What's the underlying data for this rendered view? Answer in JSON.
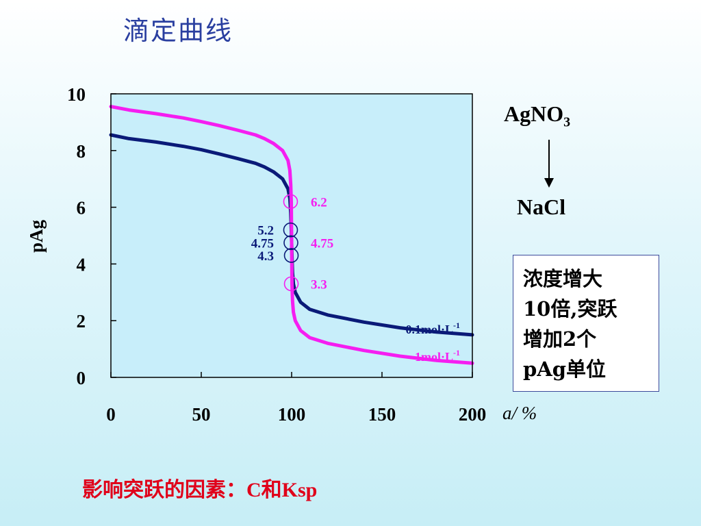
{
  "slide": {
    "title": "滴定曲线",
    "titrant": "AgNO",
    "titrant_subscript": "3",
    "analyte": "NaCl",
    "note_lines": [
      "浓度增大",
      "10倍,突跃",
      "增加2个",
      "pAg单位"
    ],
    "factors_prefix": "影响突跃的因素：",
    "factors_c": "C",
    "factors_mid": "和",
    "factors_ksp": "Ksp"
  },
  "colors": {
    "axis": "#000000",
    "dilute_series": "#0a1a78",
    "concentrated_series": "#f51ef0",
    "plot_background": "#c8eefa",
    "annotation_dilute": "#0a1a78",
    "annotation_concentrated": "#f51ef0",
    "factors_text": "#e0001a"
  },
  "chart_data": {
    "type": "line",
    "title": "",
    "xlabel": "a/ %",
    "ylabel": "pAg",
    "xlim": [
      0,
      200
    ],
    "ylim": [
      0,
      10
    ],
    "x_ticks": [
      "0",
      "50",
      "100",
      "150",
      "200"
    ],
    "y_ticks": [
      "0",
      "2",
      "4",
      "6",
      "8",
      "10"
    ],
    "grid": false,
    "series": [
      {
        "name": "0.1mol·L-1",
        "label_base": "0.1mol·L",
        "label_sup": "-1",
        "color": "#0a1a78",
        "points": [
          [
            0,
            8.55
          ],
          [
            10,
            8.42
          ],
          [
            25,
            8.3
          ],
          [
            40,
            8.15
          ],
          [
            50,
            8.03
          ],
          [
            60,
            7.88
          ],
          [
            70,
            7.72
          ],
          [
            80,
            7.55
          ],
          [
            85,
            7.42
          ],
          [
            90,
            7.25
          ],
          [
            95,
            7.0
          ],
          [
            98,
            6.65
          ],
          [
            99,
            6.3
          ],
          [
            99.5,
            5.8
          ],
          [
            99.8,
            5.2
          ],
          [
            100,
            4.75
          ],
          [
            100.2,
            4.3
          ],
          [
            100.5,
            3.7
          ],
          [
            101,
            3.3
          ],
          [
            102,
            3.0
          ],
          [
            105,
            2.65
          ],
          [
            110,
            2.4
          ],
          [
            120,
            2.2
          ],
          [
            140,
            1.95
          ],
          [
            160,
            1.75
          ],
          [
            180,
            1.6
          ],
          [
            200,
            1.5
          ]
        ]
      },
      {
        "name": "1mol·L-1",
        "label_base": "1mol·L",
        "label_sup": "-1",
        "color": "#f51ef0",
        "points": [
          [
            0,
            9.55
          ],
          [
            10,
            9.43
          ],
          [
            25,
            9.3
          ],
          [
            40,
            9.15
          ],
          [
            50,
            9.02
          ],
          [
            60,
            8.88
          ],
          [
            70,
            8.72
          ],
          [
            80,
            8.55
          ],
          [
            85,
            8.42
          ],
          [
            90,
            8.25
          ],
          [
            95,
            8.0
          ],
          [
            98,
            7.65
          ],
          [
            99,
            7.3
          ],
          [
            99.5,
            6.8
          ],
          [
            99.8,
            6.2
          ],
          [
            100,
            4.75
          ],
          [
            100.2,
            3.3
          ],
          [
            100.5,
            2.7
          ],
          [
            101,
            2.3
          ],
          [
            102,
            2.0
          ],
          [
            105,
            1.65
          ],
          [
            110,
            1.4
          ],
          [
            120,
            1.2
          ],
          [
            140,
            0.95
          ],
          [
            160,
            0.75
          ],
          [
            180,
            0.6
          ],
          [
            200,
            0.5
          ]
        ]
      }
    ],
    "jump_markers": [
      {
        "x": 99.8,
        "y": 6.2,
        "series": "1mol·L-1"
      },
      {
        "x": 99.8,
        "y": 5.2,
        "series": "0.1mol·L-1"
      },
      {
        "x": 100,
        "y": 4.75,
        "series": "0.1mol·L-1"
      },
      {
        "x": 100.2,
        "y": 4.3,
        "series": "0.1mol·L-1"
      },
      {
        "x": 100.2,
        "y": 3.3,
        "series": "1mol·L-1"
      }
    ],
    "annotations": [
      {
        "text": "6.2",
        "y": 6.2,
        "side": "right",
        "series": "1mol·L-1"
      },
      {
        "text": "5.2",
        "y": 5.2,
        "side": "left",
        "series": "0.1mol·L-1"
      },
      {
        "text": "4.75",
        "y": 4.75,
        "side": "left",
        "series": "0.1mol·L-1"
      },
      {
        "text": "4.75",
        "y": 4.75,
        "side": "right",
        "series": "1mol·L-1"
      },
      {
        "text": "4.3",
        "y": 4.3,
        "side": "left",
        "series": "0.1mol·L-1"
      },
      {
        "text": "3.3",
        "y": 3.3,
        "side": "right",
        "series": "1mol·L-1"
      }
    ]
  }
}
